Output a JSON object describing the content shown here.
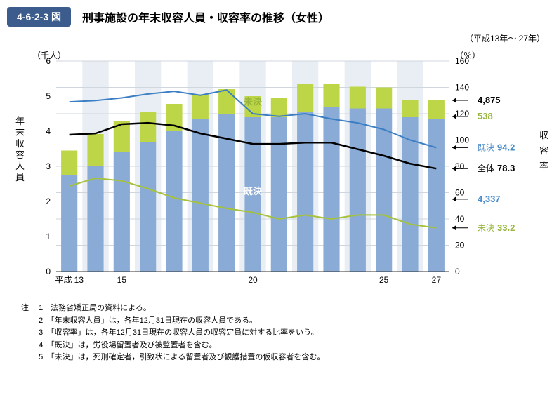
{
  "figure_tag": "4-6-2-3 図",
  "title": "刑事施設の年末収容人員・収容率の推移（女性）",
  "period": "（平成13年～ 27年）",
  "left_axis": {
    "label": "（千人）",
    "side_label": "年末収容人員",
    "min": 0,
    "max": 6,
    "step": 1,
    "fontsize": 12
  },
  "right_axis": {
    "label": "（％）",
    "side_label": "収容率",
    "min": 0,
    "max": 160,
    "step": 20,
    "fontsize": 12
  },
  "x_axis": {
    "prefix": "平成",
    "start": 13,
    "end": 27,
    "major_labels": [
      13,
      15,
      20,
      25,
      27
    ]
  },
  "colors": {
    "bar_kiketsu": "#89abd5",
    "bar_miketsu": "#bdd648",
    "line_zentai": "#000000",
    "line_kiketsu_rate": "#3b7ec4",
    "line_miketsu_rate": "#a6c23a",
    "grid": "#cfd6dd",
    "band_bg": "#e9eef4",
    "text": "#000000",
    "kiketsu_text": "#4a8cc9",
    "miketsu_text": "#97b53a"
  },
  "bar_label_kiketsu": "既決",
  "bar_label_miketsu": "未決",
  "end_values": {
    "total_pop": "4,875",
    "miketsu_pop": "538",
    "kiketsu_pop": "4,337",
    "zentai_rate": {
      "label": "全体",
      "val": "78.3"
    },
    "kiketsu_rate": {
      "label": "既決",
      "val": "94.2"
    },
    "miketsu_rate": {
      "label": "未決",
      "val": "33.2"
    }
  },
  "series": {
    "years": [
      13,
      14,
      15,
      16,
      17,
      18,
      19,
      20,
      21,
      22,
      23,
      24,
      25,
      26,
      27
    ],
    "kiketsu_bar": [
      2.75,
      3.0,
      3.4,
      3.7,
      4.0,
      4.35,
      4.5,
      4.4,
      4.4,
      4.55,
      4.7,
      4.65,
      4.65,
      4.4,
      4.34
    ],
    "miketsu_bar": [
      0.7,
      0.92,
      0.88,
      0.85,
      0.78,
      0.7,
      0.7,
      0.6,
      0.55,
      0.8,
      0.65,
      0.62,
      0.6,
      0.48,
      0.54
    ],
    "zentai_rate": [
      104,
      105,
      112,
      113,
      111,
      105,
      101,
      97,
      97,
      98,
      98,
      93,
      88,
      82,
      78.3
    ],
    "kiketsu_rate": [
      129,
      130,
      132,
      135,
      137,
      134,
      138,
      120,
      118,
      120,
      116,
      113,
      108,
      100,
      94.2
    ],
    "miketsu_rate": [
      65,
      71,
      69,
      63,
      56,
      52,
      48,
      45,
      40,
      43,
      40,
      43,
      43,
      36,
      33.2
    ]
  },
  "notes_head": "注",
  "notes": [
    "法務省矯正局の資料による。",
    "「年末収容人員」は，各年12月31日現在の収容人員である。",
    "「収容率」は，各年12月31日現在の収容人員の収容定員に対する比率をいう。",
    "「既決」は，労役場留置者及び被監置者を含む。",
    "「未決」は，死刑確定者，引致状による留置者及び観護措置の仮収容者を含む。"
  ]
}
